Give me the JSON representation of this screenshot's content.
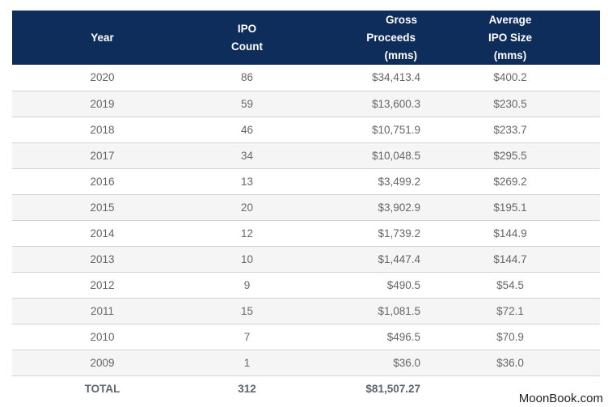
{
  "chart_data": {
    "type": "table",
    "columns": [
      "Year",
      "IPO Count",
      "Gross Proceeds (mms)",
      "Average IPO Size (mms)"
    ],
    "rows": [
      {
        "year": "2020",
        "count": "86",
        "gross": "$34,413.4",
        "avg": "$400.2"
      },
      {
        "year": "2019",
        "count": "59",
        "gross": "$13,600.3",
        "avg": "$230.5"
      },
      {
        "year": "2018",
        "count": "46",
        "gross": "$10,751.9",
        "avg": "$233.7"
      },
      {
        "year": "2017",
        "count": "34",
        "gross": "$10,048.5",
        "avg": "$295.5"
      },
      {
        "year": "2016",
        "count": "13",
        "gross": "$3,499.2",
        "avg": "$269.2"
      },
      {
        "year": "2015",
        "count": "20",
        "gross": "$3,902.9",
        "avg": "$195.1"
      },
      {
        "year": "2014",
        "count": "12",
        "gross": "$1,739.2",
        "avg": "$144.9"
      },
      {
        "year": "2013",
        "count": "10",
        "gross": "$1,447.4",
        "avg": "$144.7"
      },
      {
        "year": "2012",
        "count": "9",
        "gross": "$490.5",
        "avg": "$54.5"
      },
      {
        "year": "2011",
        "count": "15",
        "gross": "$1,081.5",
        "avg": "$72.1"
      },
      {
        "year": "2010",
        "count": "7",
        "gross": "$496.5",
        "avg": "$70.9"
      },
      {
        "year": "2009",
        "count": "1",
        "gross": "$36.0",
        "avg": "$36.0"
      }
    ],
    "total": {
      "label": "TOTAL",
      "count": "312",
      "gross": "$81,507.27",
      "avg": ""
    }
  },
  "header": {
    "year": "Year",
    "count_line1": "IPO",
    "count_line2": "Count",
    "gross_line1": "Gross",
    "gross_line2": "Proceeds",
    "gross_line3": "(mms)",
    "avg_line1": "Average",
    "avg_line2": "IPO Size",
    "avg_line3": "(mms)"
  },
  "colors": {
    "header_bg": "#0f2d5b",
    "header_text": "#ffffff",
    "row_alt_bg": "#f5f5f5",
    "body_text": "#666666"
  },
  "watermark": "MoonBook.com"
}
